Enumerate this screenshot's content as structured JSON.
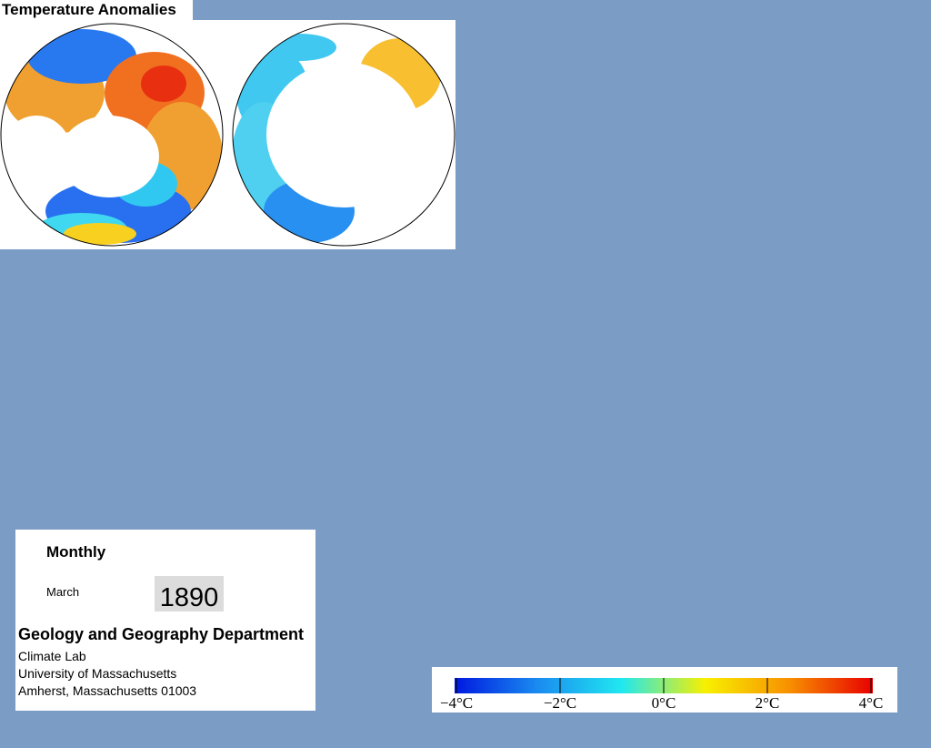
{
  "title": "Temperature Anomalies",
  "panel": {
    "frequency": "Monthly",
    "month": "March",
    "year": "1890"
  },
  "credits": {
    "department": "Geology and Geography Department",
    "lines": [
      "Climate Lab",
      "University of Massachusetts",
      "Amherst, Massachusetts 01003"
    ]
  },
  "colorbar": {
    "range": [
      -4,
      4
    ],
    "colors": [
      "#0018e0",
      "#1a8cf0",
      "#20e8f0",
      "#f8f000",
      "#f89000",
      "#e80000"
    ],
    "ticks": [
      {
        "value": -4,
        "label": "−4°C"
      },
      {
        "value": -2,
        "label": "−2°C"
      },
      {
        "value": 0,
        "label": "0°C"
      },
      {
        "value": 2,
        "label": "2°C"
      },
      {
        "value": 4,
        "label": "4°C"
      }
    ]
  }
}
